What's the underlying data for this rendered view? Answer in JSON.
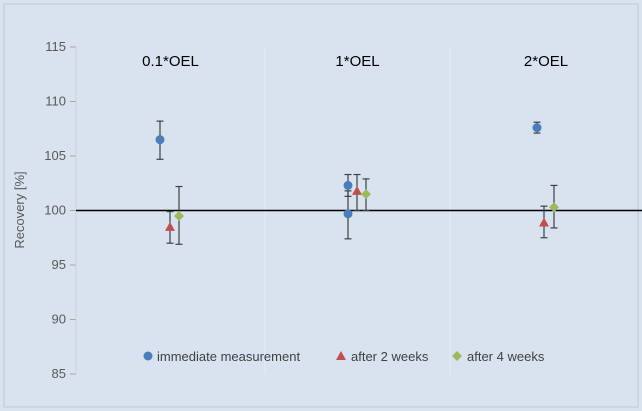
{
  "chart_data": {
    "type": "scatter",
    "title": "",
    "xlabel": "",
    "ylabel": "Recovery [%]",
    "ylim": [
      85,
      115
    ],
    "yticks": [
      85,
      90,
      95,
      100,
      105,
      110,
      115
    ],
    "reference_line": 100,
    "grid": false,
    "legend_position": "bottom-center",
    "panels": [
      "0.1*OEL",
      "1*OEL",
      "2*OEL"
    ],
    "series": [
      {
        "name": "immediate measurement",
        "marker": "circle",
        "color": "#4a7ebb",
        "points": [
          {
            "panel": "0.1*OEL",
            "y": 106.5,
            "err_low": 104.7,
            "err_high": 108.2
          },
          {
            "panel": "1*OEL",
            "y": 102.3,
            "err_low": 101.3,
            "err_high": 103.3
          },
          {
            "panel": "1*OEL",
            "y": 99.7,
            "err_low": 97.4,
            "err_high": 101.8
          },
          {
            "panel": "2*OEL",
            "y": 107.6,
            "err_low": 107.1,
            "err_high": 108.1
          }
        ]
      },
      {
        "name": "after 2 weeks",
        "marker": "triangle",
        "color": "#c0504d",
        "points": [
          {
            "panel": "0.1*OEL",
            "y": 98.5,
            "err_low": 97.0,
            "err_high": 99.9
          },
          {
            "panel": "1*OEL",
            "y": 101.8,
            "err_low": 100.0,
            "err_high": 103.3
          },
          {
            "panel": "2*OEL",
            "y": 98.9,
            "err_low": 97.5,
            "err_high": 100.4
          }
        ]
      },
      {
        "name": "after 4 weeks",
        "marker": "diamond",
        "color": "#9bbb59",
        "points": [
          {
            "panel": "0.1*OEL",
            "y": 99.5,
            "err_low": 96.9,
            "err_high": 102.2
          },
          {
            "panel": "1*OEL",
            "y": 101.5,
            "err_low": 100.0,
            "err_high": 102.9
          },
          {
            "panel": "2*OEL",
            "y": 100.3,
            "err_low": 98.4,
            "err_high": 102.3
          }
        ]
      }
    ]
  }
}
